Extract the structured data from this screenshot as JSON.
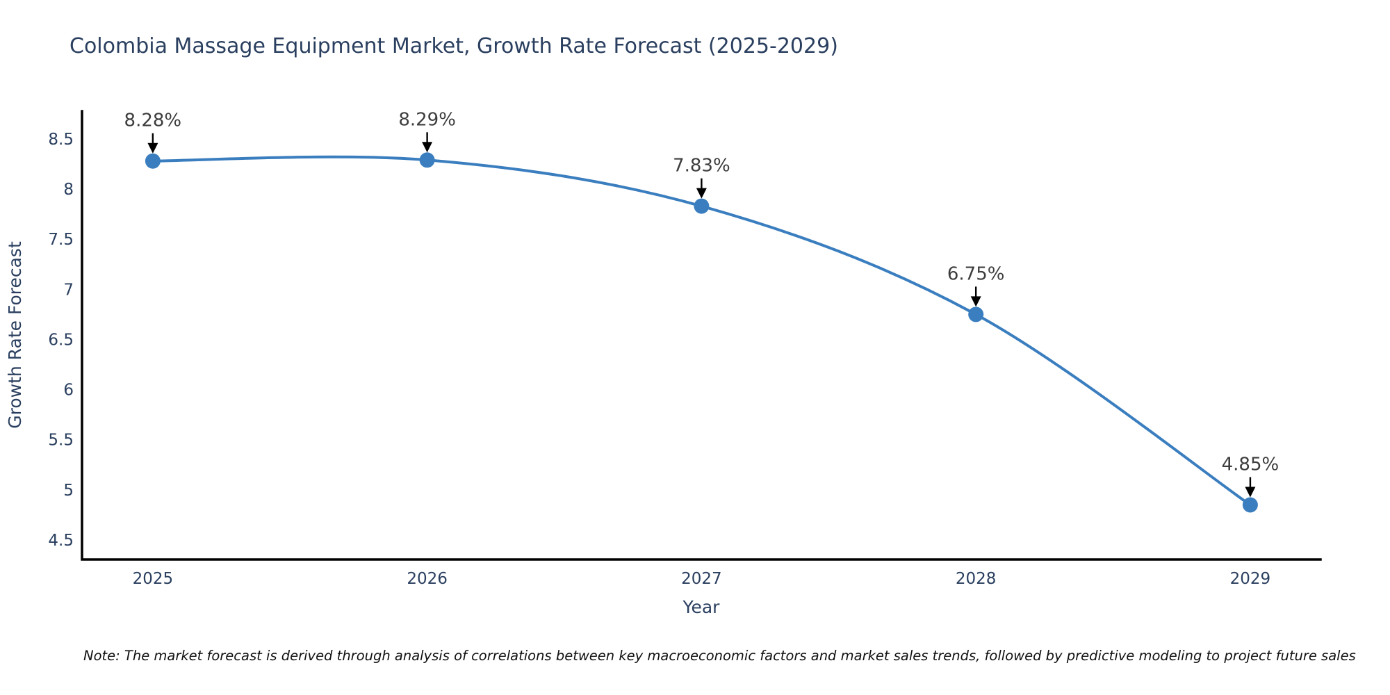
{
  "title": "Colombia Massage Equipment Market, Growth Rate Forecast (2025-2029)",
  "note": "Note: The market forecast is derived through analysis of correlations between key macroeconomic factors and market sales trends, followed by predictive modeling to project future sales",
  "chart_data": {
    "type": "line",
    "title": "Colombia Massage Equipment Market, Growth Rate Forecast (2025-2029)",
    "xlabel": "Year",
    "ylabel": "Growth Rate Forecast",
    "x": [
      2025,
      2026,
      2027,
      2028,
      2029
    ],
    "series": [
      {
        "name": "Growth Rate Forecast",
        "values": [
          8.28,
          8.29,
          7.83,
          6.75,
          4.85
        ]
      }
    ],
    "point_labels": [
      "8.28%",
      "8.29%",
      "7.83%",
      "6.75%",
      "4.85%"
    ],
    "x_tick_labels": [
      "2025",
      "2026",
      "2027",
      "2028",
      "2029"
    ],
    "y_tick_values": [
      4.5,
      5,
      5.5,
      6,
      6.5,
      7,
      7.5,
      8,
      8.5
    ],
    "xlim": [
      2024.742,
      2029.256
    ],
    "ylim": [
      4.306,
      8.777
    ],
    "grid": false,
    "legend_position": "none",
    "line_color": "#3a7ebf",
    "marker_color": "#3a7ebf",
    "marker_size": 11,
    "arrow_color": "#000000",
    "curve": "spline"
  }
}
